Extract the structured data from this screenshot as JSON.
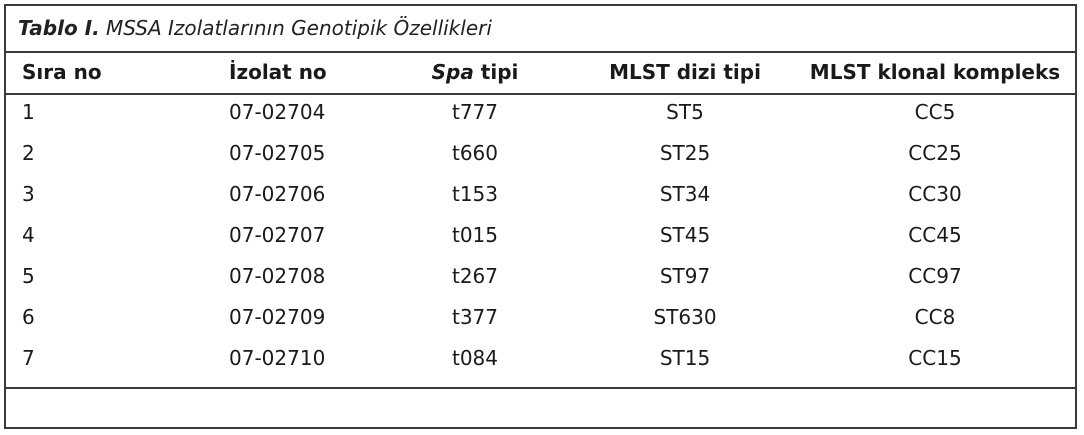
{
  "caption": {
    "label": "Tablo I.",
    "title": "MSSA Izolatlarının Genotipik Özellikleri"
  },
  "headers": {
    "sira": "Sıra no",
    "izolat": "İzolat no",
    "spa_italic": "Spa",
    "spa_rest": " tipi",
    "mlst_dizi": "MLST dizi tipi",
    "mlst_klonal": "MLST klonal kompleks"
  },
  "rows": [
    {
      "sira": "1",
      "izolat": "07-02704",
      "spa": "t777",
      "st": "ST5",
      "cc": "CC5"
    },
    {
      "sira": "2",
      "izolat": "07-02705",
      "spa": "t660",
      "st": "ST25",
      "cc": "CC25"
    },
    {
      "sira": "3",
      "izolat": "07-02706",
      "spa": "t153",
      "st": "ST34",
      "cc": "CC30"
    },
    {
      "sira": "4",
      "izolat": "07-02707",
      "spa": "t015",
      "st": "ST45",
      "cc": "CC45"
    },
    {
      "sira": "5",
      "izolat": "07-02708",
      "spa": "t267",
      "st": "ST97",
      "cc": "CC97"
    },
    {
      "sira": "6",
      "izolat": "07-02709",
      "spa": "t377",
      "st": "ST630",
      "cc": "CC8"
    },
    {
      "sira": "7",
      "izolat": "07-02710",
      "spa": "t084",
      "st": "ST15",
      "cc": "CC15"
    }
  ]
}
